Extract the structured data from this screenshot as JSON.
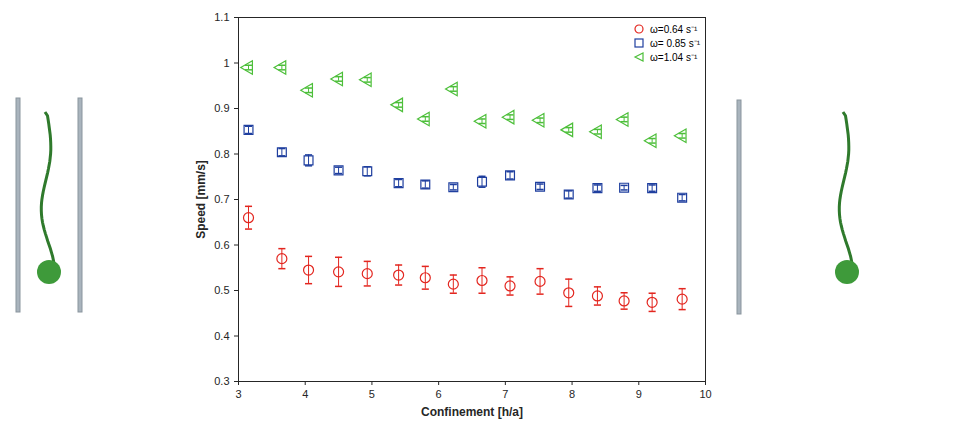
{
  "chart_data": {
    "type": "scatter",
    "x_label": "Confinement [h/a]",
    "y_label": "Speed [mm/s]",
    "x": [
      3.15,
      3.65,
      4.05,
      4.5,
      4.93,
      5.4,
      5.8,
      6.22,
      6.65,
      7.07,
      7.52,
      7.95,
      8.38,
      8.78,
      9.2,
      9.65
    ],
    "series": [
      {
        "name": "ω=0.64 s⁻¹",
        "color": "#e3261f",
        "marker": "circle",
        "values": [
          0.66,
          0.57,
          0.545,
          0.541,
          0.537,
          0.534,
          0.528,
          0.514,
          0.522,
          0.51,
          0.52,
          0.495,
          0.488,
          0.477,
          0.474,
          0.481
        ],
        "errors": [
          0.025,
          0.022,
          0.03,
          0.032,
          0.027,
          0.022,
          0.025,
          0.02,
          0.028,
          0.02,
          0.028,
          0.03,
          0.02,
          0.018,
          0.02,
          0.023
        ]
      },
      {
        "name": "ω= 0.85 s⁻¹",
        "color": "#1f3f9f",
        "marker": "square",
        "values": [
          0.853,
          0.804,
          0.786,
          0.764,
          0.762,
          0.736,
          0.733,
          0.727,
          0.739,
          0.753,
          0.728,
          0.711,
          0.725,
          0.726,
          0.725,
          0.704
        ],
        "errors": [
          0.008,
          0.008,
          0.012,
          0.007,
          0.01,
          0.008,
          0.008,
          0.006,
          0.012,
          0.008,
          0.006,
          0.008,
          0.007,
          0.005,
          0.007,
          0.007
        ]
      },
      {
        "name": "ω=1.04  s⁻¹",
        "color": "#4dbf3a",
        "marker": "triangle-left",
        "values": [
          0.99,
          0.99,
          0.94,
          0.965,
          0.963,
          0.908,
          0.877,
          0.943,
          0.872,
          0.881,
          0.874,
          0.853,
          0.849,
          0.876,
          0.829,
          0.84
        ],
        "errors": [
          0.005,
          0.005,
          0.005,
          0.005,
          0.005,
          0.005,
          0.005,
          0.005,
          0.005,
          0.005,
          0.005,
          0.005,
          0.005,
          0.005,
          0.005,
          0.005
        ]
      }
    ],
    "xlim": [
      3,
      10
    ],
    "xticks": [
      3,
      4,
      5,
      6,
      7,
      8,
      9,
      10
    ],
    "ylim": [
      0.3,
      1.1
    ],
    "yticks": [
      0.3,
      0.4,
      0.5,
      0.6,
      0.7,
      0.8,
      0.9,
      1,
      1.1
    ],
    "grid": false,
    "legend": "top-right"
  }
}
